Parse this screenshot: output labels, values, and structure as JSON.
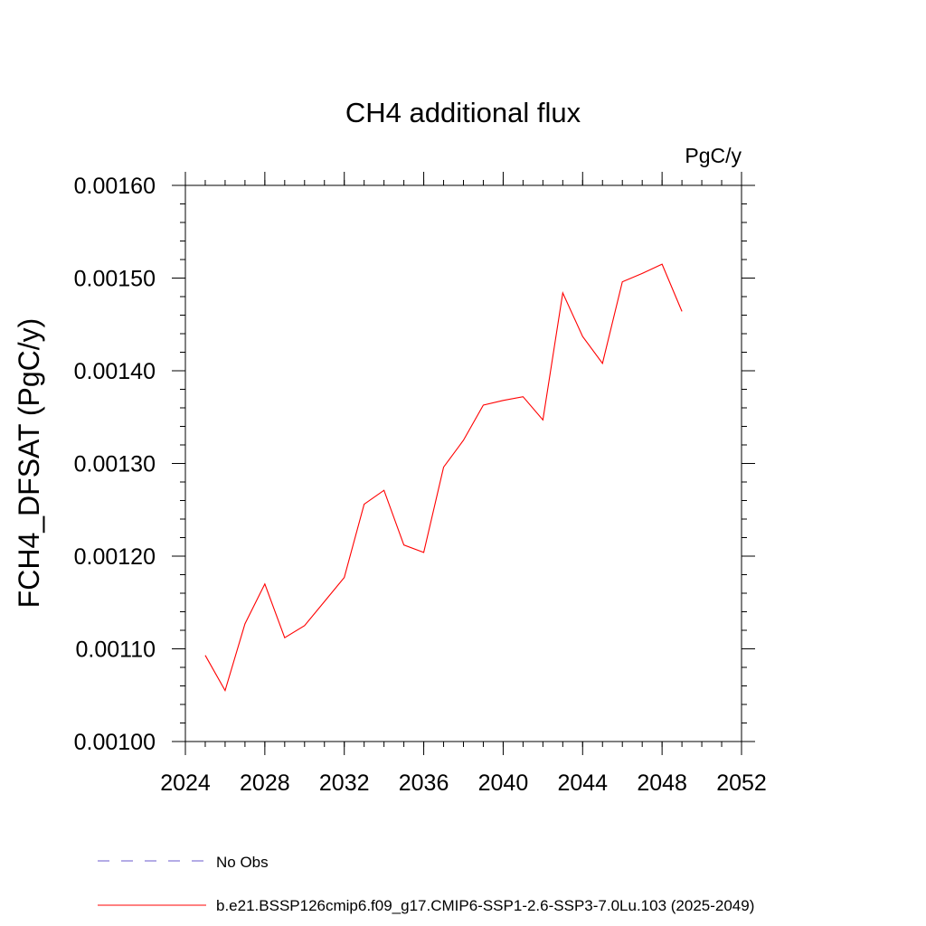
{
  "chart_data": {
    "type": "line",
    "title": "CH4 additional flux",
    "units_label": "PgC/y",
    "ylabel": "FCH4_DFSAT  (PgC/y)",
    "xlabel": "",
    "xlim": [
      2024,
      2052
    ],
    "ylim": [
      0.001,
      0.0016
    ],
    "x_major_ticks": [
      2024,
      2028,
      2032,
      2036,
      2040,
      2044,
      2048,
      2052
    ],
    "x_tick_labels": [
      "2024",
      "2028",
      "2032",
      "2036",
      "2040",
      "2044",
      "2048",
      "2052"
    ],
    "x_minor_step": 1,
    "y_major_ticks": [
      0.001,
      0.0011,
      0.0012,
      0.0013,
      0.0014,
      0.0015,
      0.0016
    ],
    "y_tick_labels": [
      "0.00100",
      "0.00110",
      "0.00120",
      "0.00130",
      "0.00140",
      "0.00150",
      "0.00160"
    ],
    "y_minor_step": 2e-05,
    "grid": false,
    "series": [
      {
        "name": "b.e21.BSSP126cmip6.f09_g17.CMIP6-SSP1-2.6-SSP3-7.0Lu.103 (2025-2049)",
        "color": "#ff0000",
        "style": "solid",
        "x": [
          2025,
          2026,
          2027,
          2028,
          2029,
          2030,
          2031,
          2032,
          2033,
          2034,
          2035,
          2036,
          2037,
          2038,
          2039,
          2040,
          2041,
          2042,
          2043,
          2044,
          2045,
          2046,
          2047,
          2048,
          2049
        ],
        "values": [
          0.001093,
          0.001055,
          0.001127,
          0.00117,
          0.001112,
          0.001125,
          0.001151,
          0.001177,
          0.001256,
          0.001271,
          0.001212,
          0.001204,
          0.001296,
          0.001325,
          0.001363,
          0.001368,
          0.001372,
          0.001347,
          0.001484,
          0.001437,
          0.001408,
          0.001496,
          0.001505,
          0.001515,
          0.001464
        ]
      }
    ],
    "legend": {
      "placement": "bottom",
      "entries": [
        {
          "label": "No Obs",
          "color": "#6a5acd",
          "style": "dashed"
        },
        {
          "label": "b.e21.BSSP126cmip6.f09_g17.CMIP6-SSP1-2.6-SSP3-7.0Lu.103 (2025-2049)",
          "color": "#ff0000",
          "style": "solid"
        }
      ]
    }
  }
}
